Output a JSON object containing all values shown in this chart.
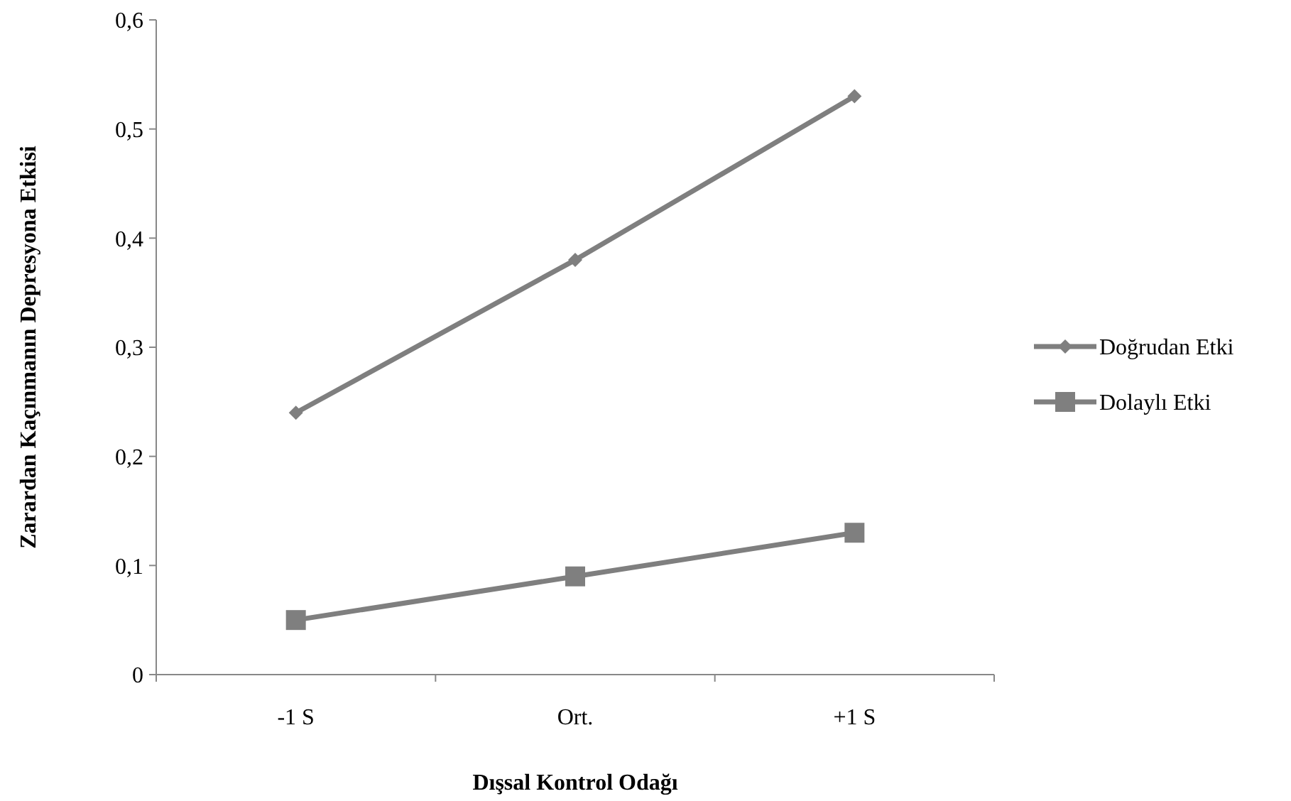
{
  "chart_data": {
    "type": "line",
    "xlabel": "Dışsal Kontrol Odağı",
    "ylabel": "Zarardan Kaçınmanın Depresyona Etkisi",
    "categories": [
      "-1 S",
      "Ort.",
      "+1 S"
    ],
    "series": [
      {
        "name": "Doğrudan Etki",
        "color": "#7f7f7f",
        "marker": "diamond",
        "values": [
          0.24,
          0.38,
          0.53
        ]
      },
      {
        "name": "Dolaylı Etki",
        "color": "#7f7f7f",
        "marker": "square",
        "values": [
          0.05,
          0.09,
          0.13
        ]
      }
    ],
    "ylim": [
      0,
      0.6
    ],
    "yticks": [
      0,
      {
        "value": 0.1,
        "label": "0,1"
      },
      {
        "value": 0.2,
        "label": "0,2"
      },
      {
        "value": 0.3,
        "label": "0,3"
      },
      {
        "value": 0.4,
        "label": "0,4"
      },
      {
        "value": 0.5,
        "label": "0,5"
      },
      {
        "value": 0.6,
        "label": "0,6"
      }
    ],
    "grid": false,
    "legend": "right",
    "line_style": "solid"
  }
}
